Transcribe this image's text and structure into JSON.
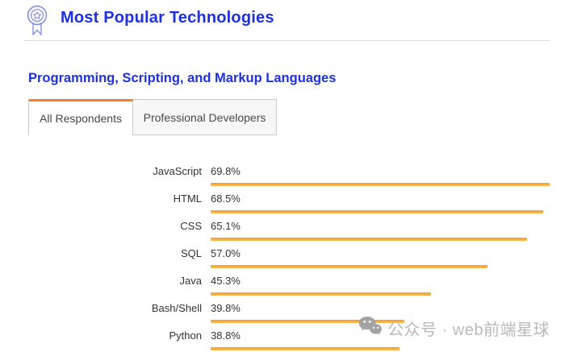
{
  "header": {
    "title": "Most Popular Technologies",
    "icon": "award-ribbon-icon"
  },
  "section": {
    "heading": "Programming, Scripting, and Markup Languages"
  },
  "tabs": [
    {
      "label": "All Respondents",
      "active": true
    },
    {
      "label": "Professional Developers",
      "active": false
    }
  ],
  "chart_data": {
    "type": "bar",
    "orientation": "horizontal",
    "title": "Programming, Scripting, and Markup Languages",
    "categories": [
      "JavaScript",
      "HTML",
      "CSS",
      "SQL",
      "Java",
      "Bash/Shell",
      "Python"
    ],
    "values": [
      69.8,
      68.5,
      65.1,
      57.0,
      45.3,
      39.8,
      38.8
    ],
    "unit": "%",
    "value_labels": [
      "69.8%",
      "68.5%",
      "65.1%",
      "57.0%",
      "45.3%",
      "39.8%",
      "38.8%"
    ],
    "xlim": [
      0,
      100
    ],
    "grid": false,
    "legend": false,
    "bar_color": "#f8ab3e"
  },
  "watermark": {
    "text": "公众号 · web前端星球",
    "icon": "wechat-icon"
  },
  "colors": {
    "heading_blue": "#1d30e2",
    "tab_active_border": "#ee8228",
    "bar_orange": "#f8ab3e",
    "divider_gray": "#d9d9d9",
    "watermark_gray": "#b9b9b9"
  }
}
